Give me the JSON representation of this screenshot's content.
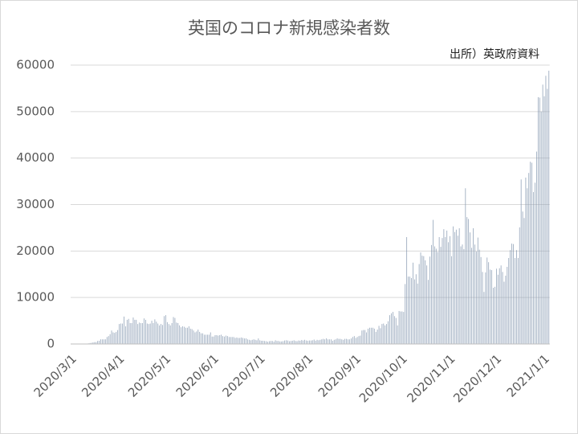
{
  "chart_data": {
    "type": "bar",
    "title": "英国のコロナ新規感染者数",
    "annotation": "出所）英政府資料",
    "color": "#8497b0",
    "grid": true,
    "ylim": [
      0,
      60000
    ],
    "yticks": [
      0,
      10000,
      20000,
      30000,
      40000,
      50000,
      60000
    ],
    "categories": [
      "2020/3/1",
      null,
      null,
      null,
      null,
      null,
      null,
      null,
      null,
      null,
      null,
      null,
      null,
      null,
      null,
      null,
      null,
      null,
      null,
      null,
      null,
      null,
      null,
      null,
      null,
      null,
      null,
      null,
      null,
      null,
      null,
      "2020/4/1",
      null,
      null,
      null,
      null,
      null,
      null,
      null,
      null,
      null,
      null,
      null,
      null,
      null,
      null,
      null,
      null,
      null,
      null,
      null,
      null,
      null,
      null,
      null,
      null,
      null,
      null,
      null,
      null,
      null,
      "2020/5/1",
      null,
      null,
      null,
      null,
      null,
      null,
      null,
      null,
      null,
      null,
      null,
      null,
      null,
      null,
      null,
      null,
      null,
      null,
      null,
      null,
      null,
      null,
      null,
      null,
      null,
      null,
      null,
      null,
      null,
      null,
      "2020/6/1",
      null,
      null,
      null,
      null,
      null,
      null,
      null,
      null,
      null,
      null,
      null,
      null,
      null,
      null,
      null,
      null,
      null,
      null,
      null,
      null,
      null,
      null,
      null,
      null,
      null,
      null,
      null,
      null,
      null,
      "2020/7/1",
      null,
      null,
      null,
      null,
      null,
      null,
      null,
      null,
      null,
      null,
      null,
      null,
      null,
      null,
      null,
      null,
      null,
      null,
      null,
      null,
      null,
      null,
      null,
      null,
      null,
      null,
      null,
      null,
      null,
      null,
      "2020/8/1",
      null,
      null,
      null,
      null,
      null,
      null,
      null,
      null,
      null,
      null,
      null,
      null,
      null,
      null,
      null,
      null,
      null,
      null,
      null,
      null,
      null,
      null,
      null,
      null,
      null,
      null,
      null,
      null,
      null,
      null,
      "2020/9/1",
      null,
      null,
      null,
      null,
      null,
      null,
      null,
      null,
      null,
      null,
      null,
      null,
      null,
      null,
      null,
      null,
      null,
      null,
      null,
      null,
      null,
      null,
      null,
      null,
      null,
      null,
      null,
      null,
      null,
      "2020/10/1",
      null,
      null,
      null,
      null,
      null,
      null,
      null,
      null,
      null,
      null,
      null,
      null,
      null,
      null,
      null,
      null,
      null,
      null,
      null,
      null,
      null,
      null,
      null,
      null,
      null,
      null,
      null,
      null,
      null,
      null,
      "2020/11/1",
      null,
      null,
      null,
      null,
      null,
      null,
      null,
      null,
      null,
      null,
      null,
      null,
      null,
      null,
      null,
      null,
      null,
      null,
      null,
      null,
      null,
      null,
      null,
      null,
      null,
      null,
      null,
      null,
      null,
      "2020/12/1",
      null,
      null,
      null,
      null,
      null,
      null,
      null,
      null,
      null,
      null,
      null,
      null,
      null,
      null,
      null,
      null,
      null,
      null,
      null,
      null,
      null,
      null,
      null,
      null,
      null,
      null,
      null,
      null,
      null,
      null,
      "2021/1/1",
      null,
      null,
      null
    ],
    "values": [
      0,
      0,
      10,
      30,
      40,
      50,
      60,
      50,
      60,
      50,
      60,
      130,
      200,
      250,
      340,
      400,
      400,
      650,
      700,
      1000,
      1000,
      1000,
      1000,
      1500,
      1700,
      2100,
      2900,
      2500,
      2400,
      2600,
      3000,
      4300,
      4400,
      4400,
      5900,
      3800,
      5200,
      5400,
      4500,
      4500,
      5700,
      5200,
      5200,
      4300,
      4600,
      4500,
      4500,
      5500,
      5200,
      4400,
      4300,
      4400,
      5000,
      4500,
      5300,
      4800,
      4400,
      4000,
      4300,
      4100,
      6000,
      6200,
      4700,
      4300,
      4000,
      4500,
      5800,
      5600,
      4600,
      4500,
      4000,
      3600,
      3800,
      3700,
      3500,
      3500,
      3800,
      3300,
      3200,
      2900,
      2500,
      2700,
      3100,
      2600,
      2300,
      2300,
      2000,
      2000,
      2000,
      2000,
      2500,
      1600,
      1600,
      1900,
      1900,
      1800,
      1900,
      2000,
      1700,
      1600,
      1800,
      1700,
      1500,
      1500,
      1500,
      1500,
      1300,
      1400,
      1300,
      1300,
      1400,
      1300,
      1200,
      1200,
      1000,
      900,
      800,
      900,
      1000,
      900,
      800,
      1200,
      800,
      700,
      700,
      650,
      600,
      500,
      600,
      650,
      650,
      500,
      800,
      650,
      650,
      550,
      550,
      600,
      750,
      800,
      750,
      600,
      650,
      700,
      800,
      650,
      600,
      750,
      700,
      850,
      750,
      900,
      750,
      700,
      750,
      750,
      800,
      950,
      700,
      900,
      800,
      900,
      1000,
      1100,
      1000,
      1200,
      1000,
      1000,
      1000,
      700,
      900,
      1000,
      1200,
      1100,
      1100,
      1000,
      900,
      1100,
      1100,
      1000,
      1000,
      1200,
      1500,
      1700,
      1300,
      1500,
      1700,
      1800,
      2900,
      3000,
      3000,
      2500,
      3300,
      3500,
      3500,
      3500,
      3300,
      2600,
      3100,
      3900,
      3400,
      4300,
      4400,
      4000,
      4300,
      4900,
      6200,
      6600,
      6900,
      6000,
      5600,
      4000,
      7100,
      7000,
      7000,
      6900,
      12900,
      23000,
      14500,
      14500,
      14200,
      17500,
      13900,
      15000,
      13000,
      17200,
      19700,
      19000,
      18900,
      18000,
      16900,
      13800,
      18800,
      21300,
      26700,
      21000,
      20500,
      19800,
      23000,
      20900,
      22800,
      24700,
      23000,
      24400,
      21900,
      23200,
      18900,
      25300,
      24100,
      24600,
      23300,
      24900,
      21000,
      21400,
      20400,
      33500,
      27300,
      26900,
      24000,
      20700,
      24900,
      21400,
      19900,
      22900,
      20300,
      18700,
      15500,
      11200,
      15400,
      18600,
      17600,
      16000,
      15900,
      12100,
      12300,
      16200,
      14900,
      16300,
      16900,
      15500,
      13400,
      14700,
      16600,
      18500,
      20200,
      21600,
      21500,
      18500,
      20200,
      18500,
      25100,
      35400,
      28500,
      27100,
      35800,
      33500,
      36800,
      39200,
      39000,
      32700,
      34700,
      41400,
      53100,
      53000,
      50000,
      55800,
      53300,
      57700,
      54900,
      58800
    ]
  }
}
